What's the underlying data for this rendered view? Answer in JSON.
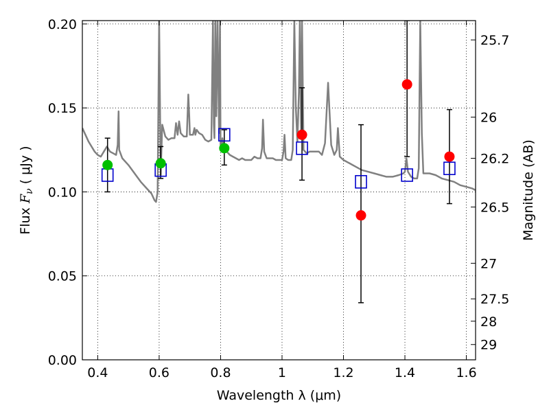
{
  "chart_data": {
    "type": "scatter",
    "xlabel": "Wavelength  λ (μm)",
    "ylabel_prefix": "Flux  ",
    "ylabel_symbol": "F",
    "ylabel_subscript": "ν",
    "ylabel_suffix": "  ( μJy )",
    "y2label": "Magnitude (AB)",
    "xlim": [
      0.35,
      1.63
    ],
    "ylim": [
      0.0,
      0.202
    ],
    "grid": true,
    "x_ticks": [
      0.4,
      0.6,
      0.8,
      1.0,
      1.2,
      1.4,
      1.6
    ],
    "x_tick_labels": [
      "0.4",
      "0.6",
      "0.8",
      "1",
      "1.2",
      "1.4",
      "1.6"
    ],
    "y_ticks": [
      0.0,
      0.05,
      0.1,
      0.15,
      0.2
    ],
    "y_tick_labels": [
      "0.00",
      "0.05",
      "0.10",
      "0.15",
      "0.20"
    ],
    "mag_ticks": [
      {
        "flux": 0.1905,
        "label": "25.7"
      },
      {
        "flux": 0.1445,
        "label": "26"
      },
      {
        "flux": 0.12,
        "label": "26.2"
      },
      {
        "flux": 0.091,
        "label": "26.5"
      },
      {
        "flux": 0.0575,
        "label": "27"
      },
      {
        "flux": 0.0363,
        "label": "27.5"
      },
      {
        "flux": 0.023,
        "label": "28"
      },
      {
        "flux": 0.0091,
        "label": "29"
      }
    ],
    "model_spectrum": {
      "color": "#808080",
      "x": [
        0.35,
        0.36,
        0.37,
        0.38,
        0.39,
        0.4,
        0.41,
        0.42,
        0.43,
        0.44,
        0.45,
        0.46,
        0.465,
        0.468,
        0.47,
        0.48,
        0.5,
        0.52,
        0.54,
        0.56,
        0.575,
        0.585,
        0.59,
        0.595,
        0.6,
        0.605,
        0.61,
        0.62,
        0.63,
        0.64,
        0.65,
        0.655,
        0.66,
        0.665,
        0.67,
        0.68,
        0.69,
        0.695,
        0.698,
        0.7,
        0.71,
        0.715,
        0.718,
        0.722,
        0.73,
        0.74,
        0.75,
        0.76,
        0.77,
        0.775,
        0.778,
        0.78,
        0.783,
        0.786,
        0.79,
        0.795,
        0.798,
        0.8,
        0.803,
        0.806,
        0.81,
        0.82,
        0.83,
        0.84,
        0.85,
        0.86,
        0.87,
        0.88,
        0.89,
        0.9,
        0.91,
        0.92,
        0.93,
        0.935,
        0.938,
        0.942,
        0.95,
        0.96,
        0.97,
        0.98,
        0.99,
        1.0,
        1.005,
        1.008,
        1.012,
        1.02,
        1.03,
        1.035,
        1.04,
        1.045,
        1.05,
        1.055,
        1.058,
        1.062,
        1.065,
        1.07,
        1.08,
        1.09,
        1.1,
        1.11,
        1.12,
        1.13,
        1.14,
        1.15,
        1.16,
        1.17,
        1.178,
        1.182,
        1.188,
        1.2,
        1.22,
        1.24,
        1.26,
        1.28,
        1.3,
        1.32,
        1.34,
        1.36,
        1.38,
        1.395,
        1.4,
        1.405,
        1.41,
        1.42,
        1.43,
        1.44,
        1.445,
        1.45,
        1.455,
        1.46,
        1.48,
        1.5,
        1.52,
        1.54,
        1.56,
        1.58,
        1.6,
        1.62,
        1.63
      ],
      "y": [
        0.138,
        0.134,
        0.13,
        0.127,
        0.124,
        0.122,
        0.121,
        0.124,
        0.127,
        0.124,
        0.123,
        0.122,
        0.128,
        0.148,
        0.125,
        0.12,
        0.116,
        0.111,
        0.106,
        0.102,
        0.099,
        0.095,
        0.094,
        0.1,
        0.202,
        0.11,
        0.14,
        0.133,
        0.131,
        0.132,
        0.132,
        0.141,
        0.134,
        0.142,
        0.135,
        0.133,
        0.133,
        0.158,
        0.145,
        0.134,
        0.134,
        0.138,
        0.134,
        0.137,
        0.135,
        0.134,
        0.131,
        0.13,
        0.131,
        0.202,
        0.14,
        0.132,
        0.202,
        0.145,
        0.202,
        0.135,
        0.202,
        0.128,
        0.126,
        0.132,
        0.125,
        0.124,
        0.122,
        0.121,
        0.12,
        0.119,
        0.12,
        0.119,
        0.119,
        0.119,
        0.121,
        0.12,
        0.12,
        0.126,
        0.143,
        0.124,
        0.12,
        0.12,
        0.12,
        0.119,
        0.119,
        0.119,
        0.124,
        0.134,
        0.12,
        0.119,
        0.119,
        0.125,
        0.202,
        0.15,
        0.13,
        0.16,
        0.202,
        0.135,
        0.202,
        0.125,
        0.123,
        0.124,
        0.124,
        0.124,
        0.124,
        0.122,
        0.129,
        0.165,
        0.128,
        0.122,
        0.125,
        0.138,
        0.121,
        0.119,
        0.117,
        0.115,
        0.113,
        0.112,
        0.111,
        0.11,
        0.109,
        0.109,
        0.11,
        0.111,
        0.112,
        0.12,
        0.112,
        0.109,
        0.108,
        0.108,
        0.114,
        0.202,
        0.135,
        0.111,
        0.111,
        0.11,
        0.108,
        0.107,
        0.106,
        0.104,
        0.103,
        0.102,
        0.101
      ]
    },
    "series": [
      {
        "marker": "circle",
        "color": "#00bf00",
        "x": [
          0.432,
          0.605,
          0.812
        ],
        "y": [
          0.116,
          0.117,
          0.126
        ],
        "err_low": [
          0.1,
          0.108,
          0.116
        ],
        "err_high": [
          0.132,
          0.127,
          0.137
        ]
      },
      {
        "marker": "circle",
        "color": "#ff0000",
        "x": [
          1.065,
          1.257,
          1.407,
          1.545
        ],
        "y": [
          0.134,
          0.086,
          0.164,
          0.121
        ],
        "err_low": [
          0.107,
          0.034,
          0.121,
          0.093
        ],
        "err_high": [
          0.162,
          0.14,
          0.202,
          0.149
        ]
      },
      {
        "marker": "open-square",
        "color": "#0000cc",
        "x": [
          0.432,
          0.605,
          0.812,
          1.065,
          1.257,
          1.407,
          1.545
        ],
        "y": [
          0.11,
          0.113,
          0.134,
          0.126,
          0.106,
          0.11,
          0.114
        ]
      }
    ]
  }
}
